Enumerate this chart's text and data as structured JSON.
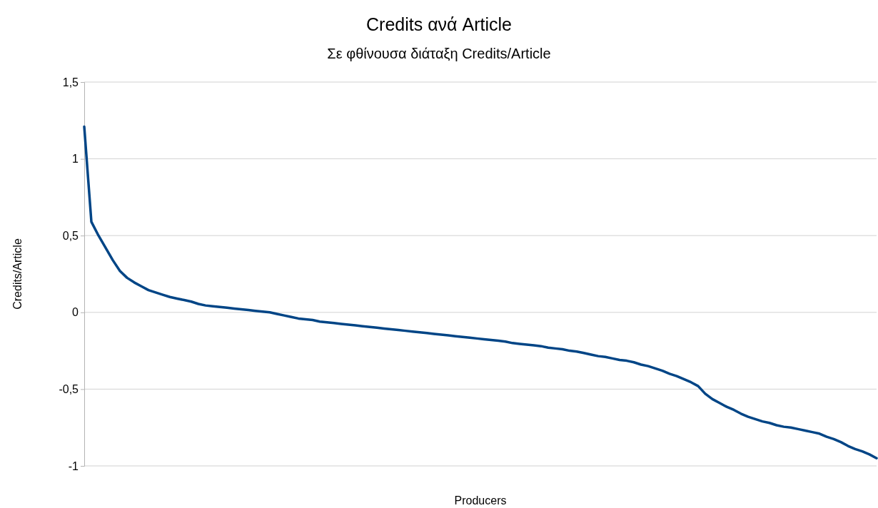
{
  "chart_data": {
    "type": "line",
    "title": "Credits ανά Article",
    "subtitle": "Σε φθίνουσα διάταξη Credits/Article",
    "xlabel": "Producers",
    "ylabel": "Credits/Article",
    "categories": [
      null,
      null,
      null,
      null,
      null,
      null,
      null,
      null,
      null,
      null,
      null,
      null,
      null,
      null,
      null,
      null,
      null,
      null,
      null,
      null,
      null,
      null,
      null,
      null,
      null,
      null,
      null,
      null,
      null,
      null,
      null,
      null,
      null,
      null,
      null,
      null,
      null,
      null,
      null,
      null,
      null,
      null,
      null,
      null,
      null,
      null,
      null,
      null,
      null,
      null,
      null,
      null,
      null,
      null,
      null,
      null,
      null,
      null,
      null,
      null,
      null,
      null,
      null,
      null,
      null,
      null,
      null,
      null,
      null,
      null,
      null,
      null,
      null,
      null,
      null,
      null,
      null,
      null,
      null,
      null,
      null,
      null,
      null,
      null,
      null,
      null,
      null,
      null,
      null,
      null,
      null,
      null,
      null,
      null,
      null,
      null,
      null,
      null,
      null,
      null,
      null,
      null,
      null,
      null,
      null,
      null,
      null,
      null,
      null,
      null,
      null,
      null
    ],
    "series": [
      {
        "color": "#004586",
        "values": [
          1.21,
          0.59,
          0.5,
          0.42,
          0.34,
          0.27,
          0.225,
          0.195,
          0.17,
          0.145,
          0.13,
          0.115,
          0.1,
          0.09,
          0.08,
          0.07,
          0.055,
          0.045,
          0.04,
          0.035,
          0.03,
          0.025,
          0.02,
          0.015,
          0.01,
          0.005,
          0,
          -0.01,
          -0.02,
          -0.03,
          -0.04,
          -0.045,
          -0.05,
          -0.06,
          -0.065,
          -0.07,
          -0.075,
          -0.08,
          -0.085,
          -0.09,
          -0.095,
          -0.1,
          -0.105,
          -0.11,
          -0.115,
          -0.12,
          -0.125,
          -0.13,
          -0.135,
          -0.14,
          -0.145,
          -0.15,
          -0.155,
          -0.16,
          -0.165,
          -0.17,
          -0.175,
          -0.18,
          -0.185,
          -0.19,
          -0.2,
          -0.205,
          -0.21,
          -0.215,
          -0.22,
          -0.23,
          -0.235,
          -0.24,
          -0.25,
          -0.255,
          -0.265,
          -0.275,
          -0.285,
          -0.29,
          -0.3,
          -0.31,
          -0.315,
          -0.325,
          -0.34,
          -0.35,
          -0.365,
          -0.38,
          -0.4,
          -0.415,
          -0.435,
          -0.455,
          -0.48,
          -0.53,
          -0.565,
          -0.59,
          -0.615,
          -0.635,
          -0.66,
          -0.68,
          -0.695,
          -0.71,
          -0.72,
          -0.735,
          -0.745,
          -0.75,
          -0.76,
          -0.77,
          -0.78,
          -0.79,
          -0.81,
          -0.825,
          -0.845,
          -0.87,
          -0.89,
          -0.905,
          -0.925,
          -0.95
        ]
      }
    ],
    "ylim": [
      -1,
      1.5
    ],
    "yticks": [
      {
        "value": -1,
        "label": "-1"
      },
      {
        "value": -0.5,
        "label": "-0,5"
      },
      {
        "value": 0,
        "label": "0"
      },
      {
        "value": 0.5,
        "label": "0,5"
      },
      {
        "value": 1,
        "label": "1"
      },
      {
        "value": 1.5,
        "label": "1,5"
      }
    ],
    "grid": "y",
    "marker": "none",
    "line_style": "solid"
  }
}
